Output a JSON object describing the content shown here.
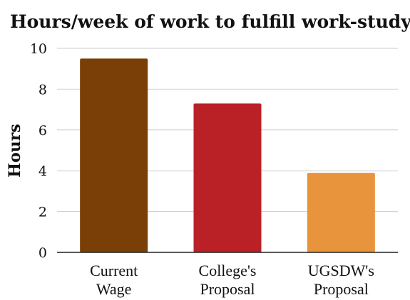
{
  "chart_data": {
    "type": "bar",
    "title": "Hours/week of work to fulfill work-study",
    "xlabel": "",
    "ylabel": "Hours",
    "ylim": [
      0,
      10
    ],
    "yticks": [
      0,
      2,
      4,
      6,
      8,
      10
    ],
    "grid": true,
    "legend": "none",
    "categories": [
      [
        "Current",
        "Wage"
      ],
      [
        "College's",
        "Proposal"
      ],
      [
        "UGSDW's",
        "Proposal"
      ]
    ],
    "values": [
      9.5,
      7.3,
      3.9
    ],
    "colors": [
      "#7a3f06",
      "#ba2126",
      "#e8943c"
    ]
  }
}
